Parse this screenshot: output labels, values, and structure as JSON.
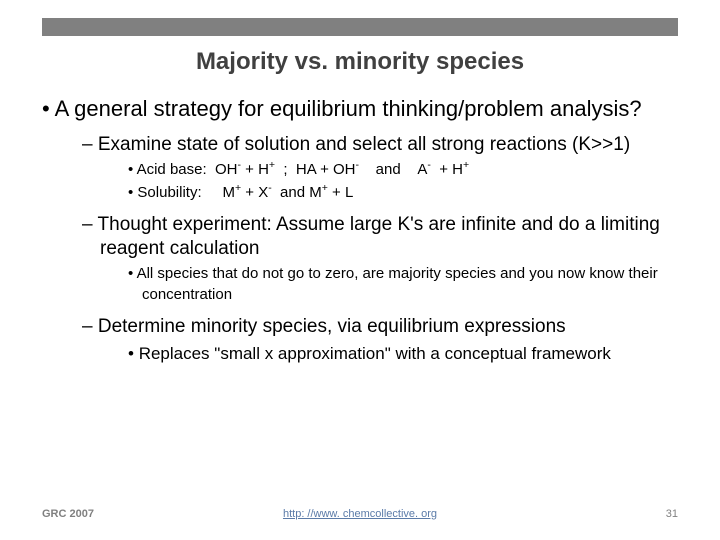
{
  "title": "Majority vs. minority species",
  "main": "A general strategy for equilibrium thinking/problem analysis?",
  "sub1": "Examine state of solution and select all strong reactions (K>>1)",
  "sub1a_html": "Acid base:&nbsp;&nbsp;OH<sup>-</sup> + H<sup>+</sup>&nbsp;&nbsp;;&nbsp;&nbsp;HA + OH<sup>-</sup>&nbsp;&nbsp;&nbsp;&nbsp;and&nbsp;&nbsp;&nbsp;&nbsp;A<sup>-</sup>&nbsp;&nbsp;+ H<sup>+</sup>",
  "sub1b_html": "Solubility:&nbsp;&nbsp;&nbsp;&nbsp;&nbsp;M<sup>+</sup> + X<sup>-</sup>&nbsp;&nbsp;and&nbsp;M<sup>+</sup> + L",
  "sub2": "Thought experiment: Assume large K's are infinite and do a limiting reagent calculation",
  "sub2a": "All species that do not go to zero, are majority species and you now know their concentration",
  "sub3": "Determine minority species, via equilibrium expressions",
  "sub3a": "Replaces \"small x approximation\" with a conceptual framework",
  "footer": {
    "left": "GRC 2007",
    "link": "http: //www. chemcollective. org",
    "page": "31"
  }
}
